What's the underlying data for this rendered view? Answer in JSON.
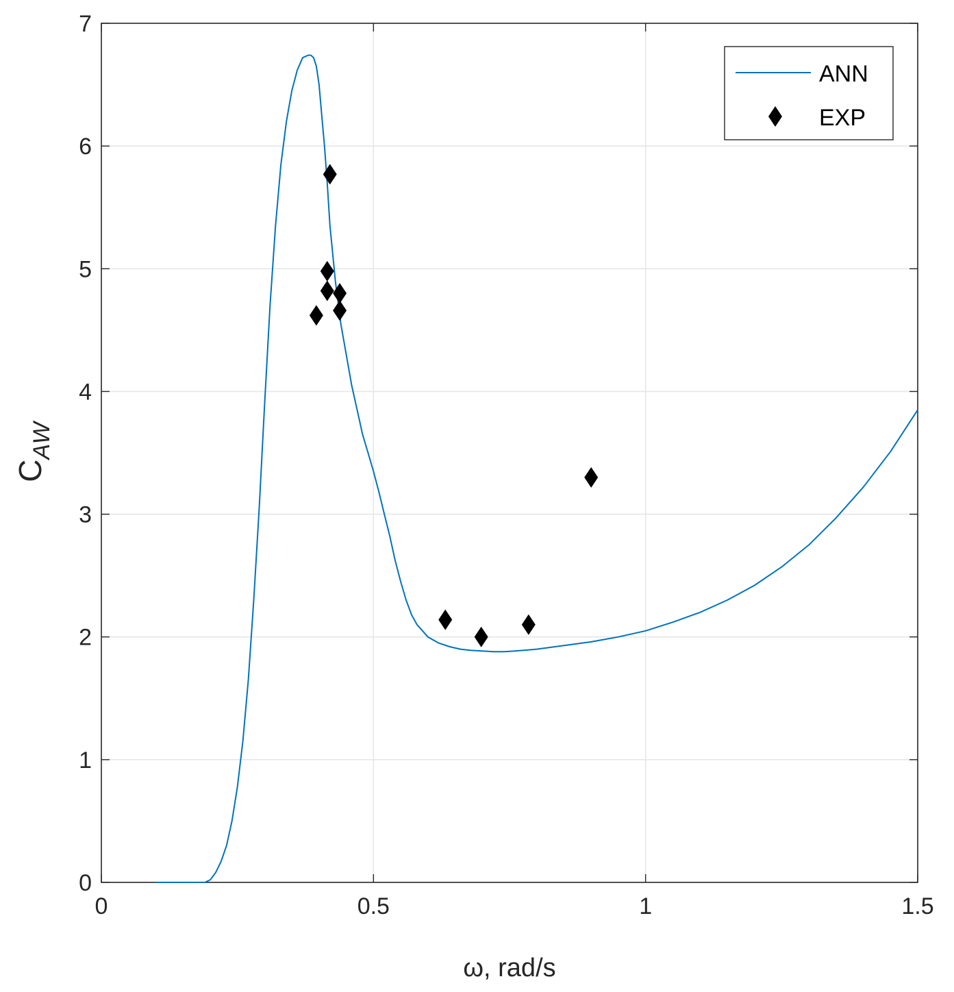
{
  "chart_data": {
    "type": "line",
    "title": "",
    "xlabel": "ω, rad/s",
    "ylabel": {
      "main": "C",
      "sub": "AW"
    },
    "xlim": [
      0,
      1.5
    ],
    "ylim": [
      0,
      7
    ],
    "xticks": [
      0,
      0.5,
      1,
      1.5
    ],
    "xtick_labels": [
      "0",
      "0.5",
      "1",
      "1.5"
    ],
    "yticks": [
      0,
      1,
      2,
      3,
      4,
      5,
      6,
      7
    ],
    "ytick_labels": [
      "0",
      "1",
      "2",
      "3",
      "4",
      "5",
      "6",
      "7"
    ],
    "grid": true,
    "legend_position": "top-right",
    "series": [
      {
        "name": "ANN",
        "kind": "line",
        "color": "#0072BD",
        "x": [
          0.1,
          0.15,
          0.19,
          0.2,
          0.21,
          0.22,
          0.23,
          0.24,
          0.25,
          0.26,
          0.27,
          0.28,
          0.29,
          0.3,
          0.31,
          0.32,
          0.33,
          0.34,
          0.35,
          0.36,
          0.37,
          0.38,
          0.385,
          0.39,
          0.395,
          0.4,
          0.405,
          0.41,
          0.415,
          0.42,
          0.43,
          0.44,
          0.45,
          0.46,
          0.47,
          0.48,
          0.49,
          0.5,
          0.51,
          0.52,
          0.53,
          0.54,
          0.55,
          0.56,
          0.57,
          0.58,
          0.6,
          0.62,
          0.64,
          0.66,
          0.68,
          0.7,
          0.72,
          0.74,
          0.76,
          0.8,
          0.85,
          0.9,
          0.95,
          1.0,
          1.05,
          1.1,
          1.15,
          1.2,
          1.25,
          1.3,
          1.35,
          1.4,
          1.45,
          1.5
        ],
        "y": [
          0,
          0,
          0,
          0.02,
          0.08,
          0.17,
          0.3,
          0.5,
          0.78,
          1.15,
          1.65,
          2.3,
          3.05,
          3.9,
          4.7,
          5.35,
          5.85,
          6.2,
          6.45,
          6.62,
          6.72,
          6.74,
          6.74,
          6.72,
          6.65,
          6.5,
          6.25,
          6.0,
          5.7,
          5.35,
          4.9,
          4.55,
          4.3,
          4.05,
          3.85,
          3.65,
          3.5,
          3.35,
          3.18,
          3.0,
          2.82,
          2.62,
          2.45,
          2.3,
          2.18,
          2.1,
          2.0,
          1.95,
          1.92,
          1.9,
          1.89,
          1.885,
          1.88,
          1.88,
          1.885,
          1.9,
          1.93,
          1.96,
          2.0,
          2.05,
          2.12,
          2.2,
          2.3,
          2.42,
          2.57,
          2.75,
          2.97,
          3.22,
          3.51,
          3.85
        ]
      },
      {
        "name": "EXP",
        "kind": "scatter",
        "marker": "diamond",
        "color": "#000000",
        "x": [
          0.395,
          0.415,
          0.415,
          0.42,
          0.438,
          0.438,
          0.632,
          0.698,
          0.785,
          0.9
        ],
        "y": [
          4.62,
          4.98,
          4.82,
          5.77,
          4.8,
          4.66,
          2.14,
          2.0,
          2.1,
          3.3
        ]
      }
    ]
  }
}
